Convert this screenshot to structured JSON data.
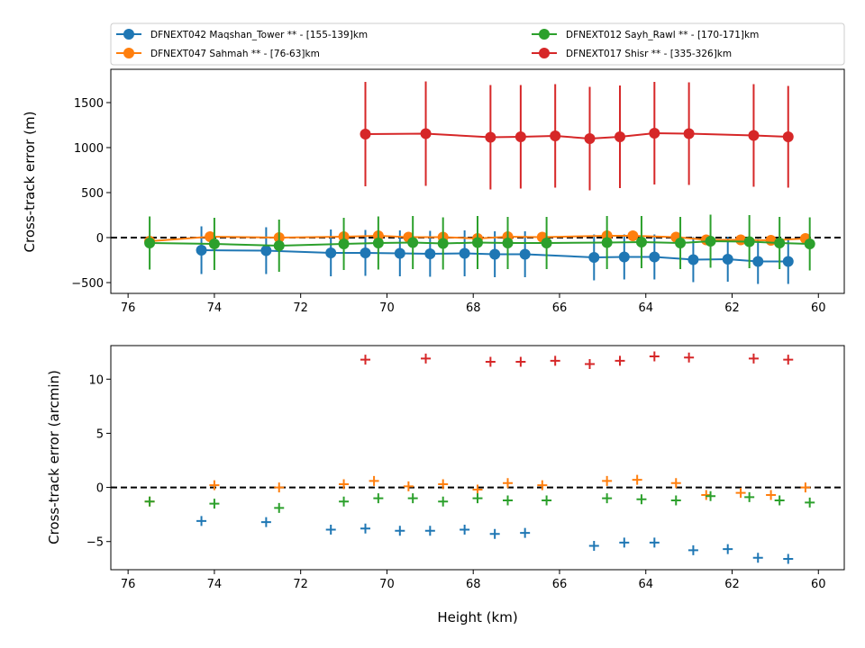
{
  "colors": {
    "blue": "#1f77b4",
    "orange": "#ff7f0e",
    "green": "#2ca02c",
    "red": "#d62728",
    "reference_line": "#000000"
  },
  "chart_data": [
    {
      "type": "line",
      "panel": "top",
      "xlabel": "",
      "ylabel": "Cross-track error (m)",
      "xlim": [
        76.4,
        59.4
      ],
      "ylim": [
        -620,
        1870
      ],
      "x_ticks": [
        76,
        74,
        72,
        70,
        68,
        66,
        64,
        62,
        60
      ],
      "y_ticks": [
        -500,
        0,
        500,
        1000,
        1500
      ],
      "x_tick_labels": [
        "76",
        "74",
        "72",
        "70",
        "68",
        "66",
        "64",
        "62",
        "60"
      ],
      "y_tick_labels": [
        "−500",
        "0",
        "500",
        "1000",
        "1500"
      ],
      "grid": false,
      "reference_line_y": 0,
      "legend": {
        "placement": "above",
        "entries": [
          "DFNEXT042 Maqshan_Tower **  - [155-139]km",
          "DFNEXT012 Sayh_Rawl **  - [170-171]km",
          "DFNEXT047 Sahmah **  - [76-63]km",
          "DFNEXT017 Shisr **  - [335-326]km"
        ]
      },
      "series": [
        {
          "name": "DFNEXT042 Maqshan_Tower **  - [155-139]km",
          "color": "#1f77b4",
          "x": [
            74.3,
            72.8,
            71.3,
            70.5,
            69.7,
            69.0,
            68.2,
            67.5,
            66.8,
            65.2,
            64.5,
            63.8,
            62.9,
            62.1,
            61.4,
            60.7
          ],
          "y": [
            -140,
            -145,
            -170,
            -170,
            -175,
            -180,
            -175,
            -185,
            -185,
            -220,
            -215,
            -215,
            -245,
            -240,
            -265,
            -265
          ],
          "err": [
            265,
            260,
            260,
            255,
            255,
            255,
            255,
            255,
            255,
            255,
            250,
            250,
            250,
            250,
            250,
            250
          ]
        },
        {
          "name": "DFNEXT047 Sahmah **  - [76-63]km",
          "color": "#ff7f0e",
          "x": [
            75.5,
            74.1,
            72.5,
            71.0,
            70.2,
            69.5,
            68.7,
            67.9,
            67.2,
            66.4,
            64.9,
            64.3,
            63.3,
            62.6,
            61.8,
            61.1,
            60.3
          ],
          "y": [
            -40,
            10,
            0,
            10,
            20,
            5,
            5,
            -10,
            10,
            5,
            20,
            20,
            5,
            -25,
            -25,
            -30,
            -10
          ],
          "err": [
            20,
            20,
            20,
            20,
            20,
            20,
            20,
            20,
            20,
            20,
            20,
            20,
            20,
            20,
            20,
            20,
            20
          ]
        },
        {
          "name": "DFNEXT012 Sayh_Rawl **  - [170-171]km",
          "color": "#2ca02c",
          "x": [
            75.5,
            74.0,
            72.5,
            71.0,
            70.2,
            69.4,
            68.7,
            67.9,
            67.2,
            66.3,
            64.9,
            64.1,
            63.2,
            62.5,
            61.6,
            60.9,
            60.2
          ],
          "y": [
            -60,
            -70,
            -90,
            -70,
            -60,
            -55,
            -65,
            -55,
            -60,
            -60,
            -55,
            -50,
            -60,
            -40,
            -45,
            -60,
            -70
          ],
          "err": [
            295,
            290,
            290,
            290,
            295,
            295,
            290,
            295,
            290,
            290,
            295,
            290,
            290,
            295,
            295,
            290,
            295
          ]
        },
        {
          "name": "DFNEXT017 Shisr **  - [335-326]km",
          "color": "#d62728",
          "x": [
            70.5,
            69.1,
            67.6,
            66.9,
            66.1,
            65.3,
            64.6,
            63.8,
            63.0,
            61.5,
            60.7
          ],
          "y": [
            1150,
            1155,
            1115,
            1120,
            1130,
            1100,
            1120,
            1160,
            1155,
            1135,
            1120
          ],
          "err": [
            580,
            580,
            580,
            575,
            575,
            575,
            570,
            570,
            570,
            570,
            565
          ]
        }
      ]
    },
    {
      "type": "scatter",
      "panel": "bottom",
      "xlabel": "Height (km)",
      "ylabel": "Cross-track error (arcmin)",
      "xlim": [
        76.4,
        59.4
      ],
      "ylim": [
        -7.6,
        13.1
      ],
      "x_ticks": [
        76,
        74,
        72,
        70,
        68,
        66,
        64,
        62,
        60
      ],
      "y_ticks": [
        -5,
        0,
        5,
        10
      ],
      "x_tick_labels": [
        "76",
        "74",
        "72",
        "70",
        "68",
        "66",
        "64",
        "62",
        "60"
      ],
      "y_tick_labels": [
        "−5",
        "0",
        "5",
        "10"
      ],
      "grid": false,
      "marker": "plus",
      "reference_line_y": 0,
      "series": [
        {
          "color": "#1f77b4",
          "x": [
            74.3,
            72.8,
            71.3,
            70.5,
            69.7,
            69.0,
            68.2,
            67.5,
            66.8,
            65.2,
            64.5,
            63.8,
            62.9,
            62.1,
            61.4,
            60.7
          ],
          "y": [
            -3.1,
            -3.2,
            -3.9,
            -3.8,
            -4.0,
            -4.0,
            -3.9,
            -4.3,
            -4.2,
            -5.4,
            -5.1,
            -5.1,
            -5.8,
            -5.7,
            -6.5,
            -6.6
          ]
        },
        {
          "color": "#ff7f0e",
          "x": [
            75.5,
            74.0,
            72.5,
            71.0,
            70.3,
            69.5,
            68.7,
            67.9,
            67.2,
            66.4,
            64.9,
            64.2,
            63.3,
            62.6,
            61.8,
            61.1,
            60.3
          ],
          "y": [
            -1.3,
            0.2,
            0.0,
            0.3,
            0.6,
            0.1,
            0.3,
            -0.2,
            0.4,
            0.2,
            0.6,
            0.7,
            0.4,
            -0.7,
            -0.5,
            -0.7,
            0.0
          ]
        },
        {
          "color": "#2ca02c",
          "x": [
            75.5,
            74.0,
            72.5,
            71.0,
            70.2,
            69.4,
            68.7,
            67.9,
            67.2,
            66.3,
            64.9,
            64.1,
            63.3,
            62.5,
            61.6,
            60.9,
            60.2
          ],
          "y": [
            -1.3,
            -1.5,
            -1.9,
            -1.3,
            -1.0,
            -1.0,
            -1.3,
            -1.0,
            -1.2,
            -1.2,
            -1.0,
            -1.1,
            -1.2,
            -0.8,
            -0.9,
            -1.2,
            -1.4
          ]
        },
        {
          "color": "#d62728",
          "x": [
            70.5,
            69.1,
            67.6,
            66.9,
            66.1,
            65.3,
            64.6,
            63.8,
            63.0,
            61.5,
            60.7
          ],
          "y": [
            11.8,
            11.9,
            11.6,
            11.6,
            11.7,
            11.4,
            11.7,
            12.1,
            12.0,
            11.9,
            11.8
          ]
        }
      ]
    }
  ]
}
